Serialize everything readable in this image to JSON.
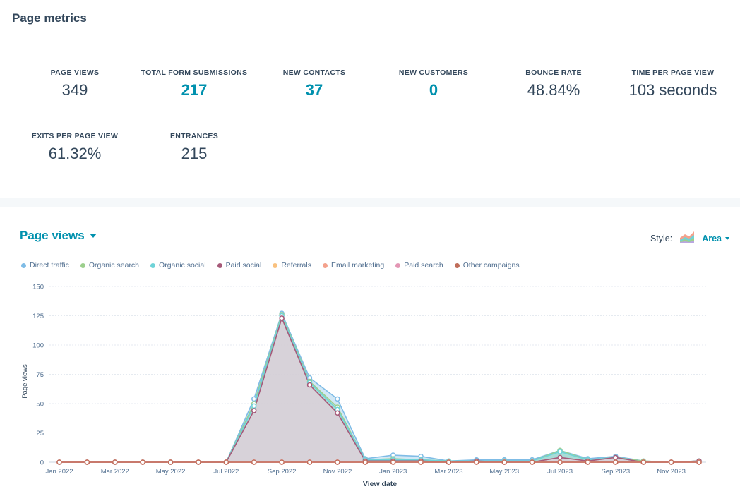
{
  "header": {
    "title": "Page metrics"
  },
  "metrics": [
    {
      "label": "PAGE VIEWS",
      "value": "349",
      "link": false
    },
    {
      "label": "TOTAL FORM SUBMISSIONS",
      "value": "217",
      "link": true
    },
    {
      "label": "NEW CONTACTS",
      "value": "37",
      "link": true
    },
    {
      "label": "NEW CUSTOMERS",
      "value": "0",
      "link": true
    },
    {
      "label": "BOUNCE RATE",
      "value": "48.84%",
      "link": false
    },
    {
      "label": "TIME PER PAGE VIEW",
      "value": "103 seconds",
      "link": false
    },
    {
      "label": "EXITS PER PAGE VIEW",
      "value": "61.32%",
      "link": false
    },
    {
      "label": "ENTRANCES",
      "value": "215",
      "link": false
    }
  ],
  "chart_header": {
    "title": "Page views",
    "style_label": "Style:",
    "style_value": "Area",
    "style_icon": "area-chart-icon"
  },
  "colors": {
    "accent": "#0091ae",
    "text": "#33475b"
  },
  "chart_data": {
    "type": "area",
    "xlabel": "View date",
    "ylabel": "Page views",
    "ylim": [
      0,
      150
    ],
    "y_ticks": [
      0,
      25,
      50,
      75,
      100,
      125,
      150
    ],
    "grid": true,
    "legend_position": "top-left",
    "x_tick_labels": [
      "Jan 2022",
      "Mar 2022",
      "May 2022",
      "Jul 2022",
      "Sep 2022",
      "Nov 2022",
      "Jan 2023",
      "Mar 2023",
      "May 2023",
      "Jul 2023",
      "Sep 2023",
      "Nov 2023"
    ],
    "x": [
      "Jan 2022",
      "Feb 2022",
      "Mar 2022",
      "Apr 2022",
      "May 2022",
      "Jun 2022",
      "Jul 2022",
      "Aug 2022",
      "Sep 2022",
      "Oct 2022",
      "Nov 2022",
      "Dec 2022",
      "Jan 2023",
      "Feb 2023",
      "Mar 2023",
      "Apr 2023",
      "May 2023",
      "Jun 2023",
      "Jul 2023",
      "Aug 2023",
      "Sep 2023",
      "Oct 2023",
      "Nov 2023",
      "Dec 2023"
    ],
    "series": [
      {
        "name": "Direct traffic",
        "color": "#7fbce6",
        "values": [
          0,
          0,
          0,
          0,
          0,
          0,
          0,
          54,
          127,
          72,
          54,
          3,
          6,
          5,
          1,
          2,
          2,
          2,
          10,
          3,
          5,
          1,
          0,
          1
        ]
      },
      {
        "name": "Organic search",
        "color": "#9ccf8d",
        "values": [
          0,
          0,
          0,
          0,
          0,
          0,
          0,
          50,
          126,
          69,
          47,
          2,
          3,
          2,
          1,
          1,
          1,
          1,
          10,
          2,
          4,
          1,
          0,
          1
        ]
      },
      {
        "name": "Organic social",
        "color": "#6fd3d8",
        "values": [
          0,
          0,
          0,
          0,
          0,
          0,
          0,
          48,
          125,
          68,
          45,
          2,
          2,
          2,
          1,
          1,
          1,
          1,
          9,
          2,
          4,
          0,
          0,
          1
        ]
      },
      {
        "name": "Paid social",
        "color": "#a65a79",
        "values": [
          0,
          0,
          0,
          0,
          0,
          0,
          0,
          44,
          123,
          66,
          42,
          1,
          1,
          1,
          0,
          1,
          0,
          0,
          4,
          1,
          4,
          0,
          0,
          1
        ]
      },
      {
        "name": "Referrals",
        "color": "#f9c17f",
        "values": [
          0,
          0,
          0,
          0,
          0,
          0,
          0,
          0,
          0,
          0,
          0,
          0,
          0,
          0,
          0,
          0,
          0,
          0,
          0,
          0,
          0,
          0,
          0,
          0
        ]
      },
      {
        "name": "Email marketing",
        "color": "#f4a28d",
        "values": [
          0,
          0,
          0,
          0,
          0,
          0,
          0,
          0,
          0,
          0,
          0,
          0,
          0,
          0,
          0,
          0,
          0,
          0,
          0,
          0,
          0,
          0,
          0,
          0
        ]
      },
      {
        "name": "Paid search",
        "color": "#e396b4",
        "values": [
          0,
          0,
          0,
          0,
          0,
          0,
          0,
          0,
          0,
          0,
          0,
          0,
          0,
          0,
          0,
          0,
          0,
          0,
          0,
          0,
          0,
          0,
          0,
          0
        ]
      },
      {
        "name": "Other campaigns",
        "color": "#c06d5a",
        "values": [
          0,
          0,
          0,
          0,
          0,
          0,
          0,
          0,
          0,
          0,
          0,
          0,
          0,
          0,
          0,
          0,
          0,
          0,
          0,
          0,
          0,
          0,
          0,
          0
        ]
      }
    ]
  }
}
